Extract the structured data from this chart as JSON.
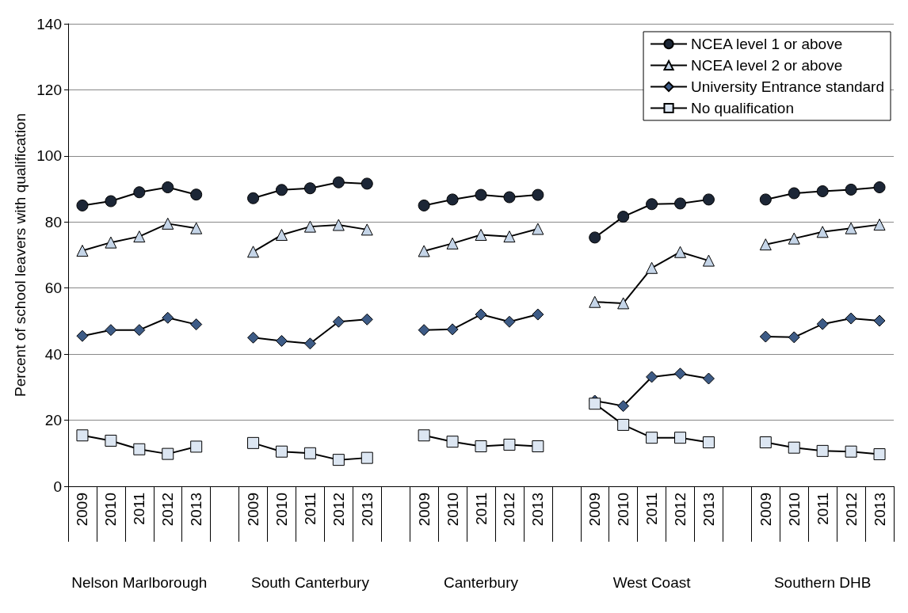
{
  "chart_data": {
    "type": "line",
    "ylabel": "Percent of school leavers with qualification",
    "categories": [
      "2009",
      "2010",
      "2011",
      "2012",
      "2013",
      null,
      "2009",
      "2010",
      "2011",
      "2012",
      "2013",
      null,
      "2009",
      "2010",
      "2011",
      "2012",
      "2013",
      null,
      "2009",
      "2010",
      "2011",
      "2012",
      "2013",
      null,
      "2009",
      "2010",
      "2011",
      "2012",
      "2013"
    ],
    "annotations": [
      "Nelson Marlborough",
      "South Canterbury",
      "Canterbury",
      "West Coast",
      "Southern DHB"
    ],
    "series": [
      {
        "name": "NCEA level 1 or above",
        "color": "#1c2636",
        "marker": "circle",
        "values": [
          85,
          86.3,
          89,
          90.5,
          88.3,
          null,
          87.2,
          89.7,
          90.2,
          92,
          91.6,
          null,
          85,
          86.8,
          88.2,
          87.5,
          88.2,
          null,
          75.3,
          81.6,
          85.4,
          85.6,
          86.8,
          null,
          86.8,
          88.7,
          89.3,
          89.8,
          90.5
        ]
      },
      {
        "name": "NCEA level 2 or above",
        "color": "#c5d5e8",
        "marker": "triangle",
        "values": [
          71.3,
          73.8,
          75.6,
          79.5,
          78.1,
          null,
          71,
          76.1,
          78.6,
          79.1,
          77.7,
          null,
          71.2,
          73.5,
          76.1,
          75.6,
          77.9,
          null,
          55.8,
          55.4,
          66.1,
          70.9,
          68.3,
          null,
          73.2,
          75,
          77,
          78.1,
          79.2
        ]
      },
      {
        "name": "University Entrance standard",
        "color": "#3d5b86",
        "marker": "diamond",
        "values": [
          45.5,
          47.3,
          47.3,
          51,
          49,
          null,
          45,
          44,
          43.2,
          49.8,
          50.5,
          null,
          47.3,
          47.5,
          52,
          49.8,
          52,
          null,
          25.9,
          24.3,
          33.1,
          34.1,
          32.6,
          null,
          45.3,
          45.1,
          49.1,
          50.8,
          50.1
        ]
      },
      {
        "name": "No qualification",
        "color": "#dce6f2",
        "marker": "square",
        "values": [
          15.4,
          13.8,
          11.2,
          9.8,
          12,
          null,
          13.1,
          10.5,
          10,
          8,
          8.6,
          null,
          15.4,
          13.5,
          12.1,
          12.6,
          12.1,
          null,
          25,
          18.6,
          14.7,
          14.7,
          13.3,
          null,
          13.3,
          11.7,
          10.7,
          10.5,
          9.7
        ]
      }
    ],
    "ylim": [
      0,
      140
    ],
    "yticks": [
      0,
      20,
      40,
      60,
      80,
      100,
      120,
      140
    ],
    "grid": "y",
    "legend": "top right"
  }
}
